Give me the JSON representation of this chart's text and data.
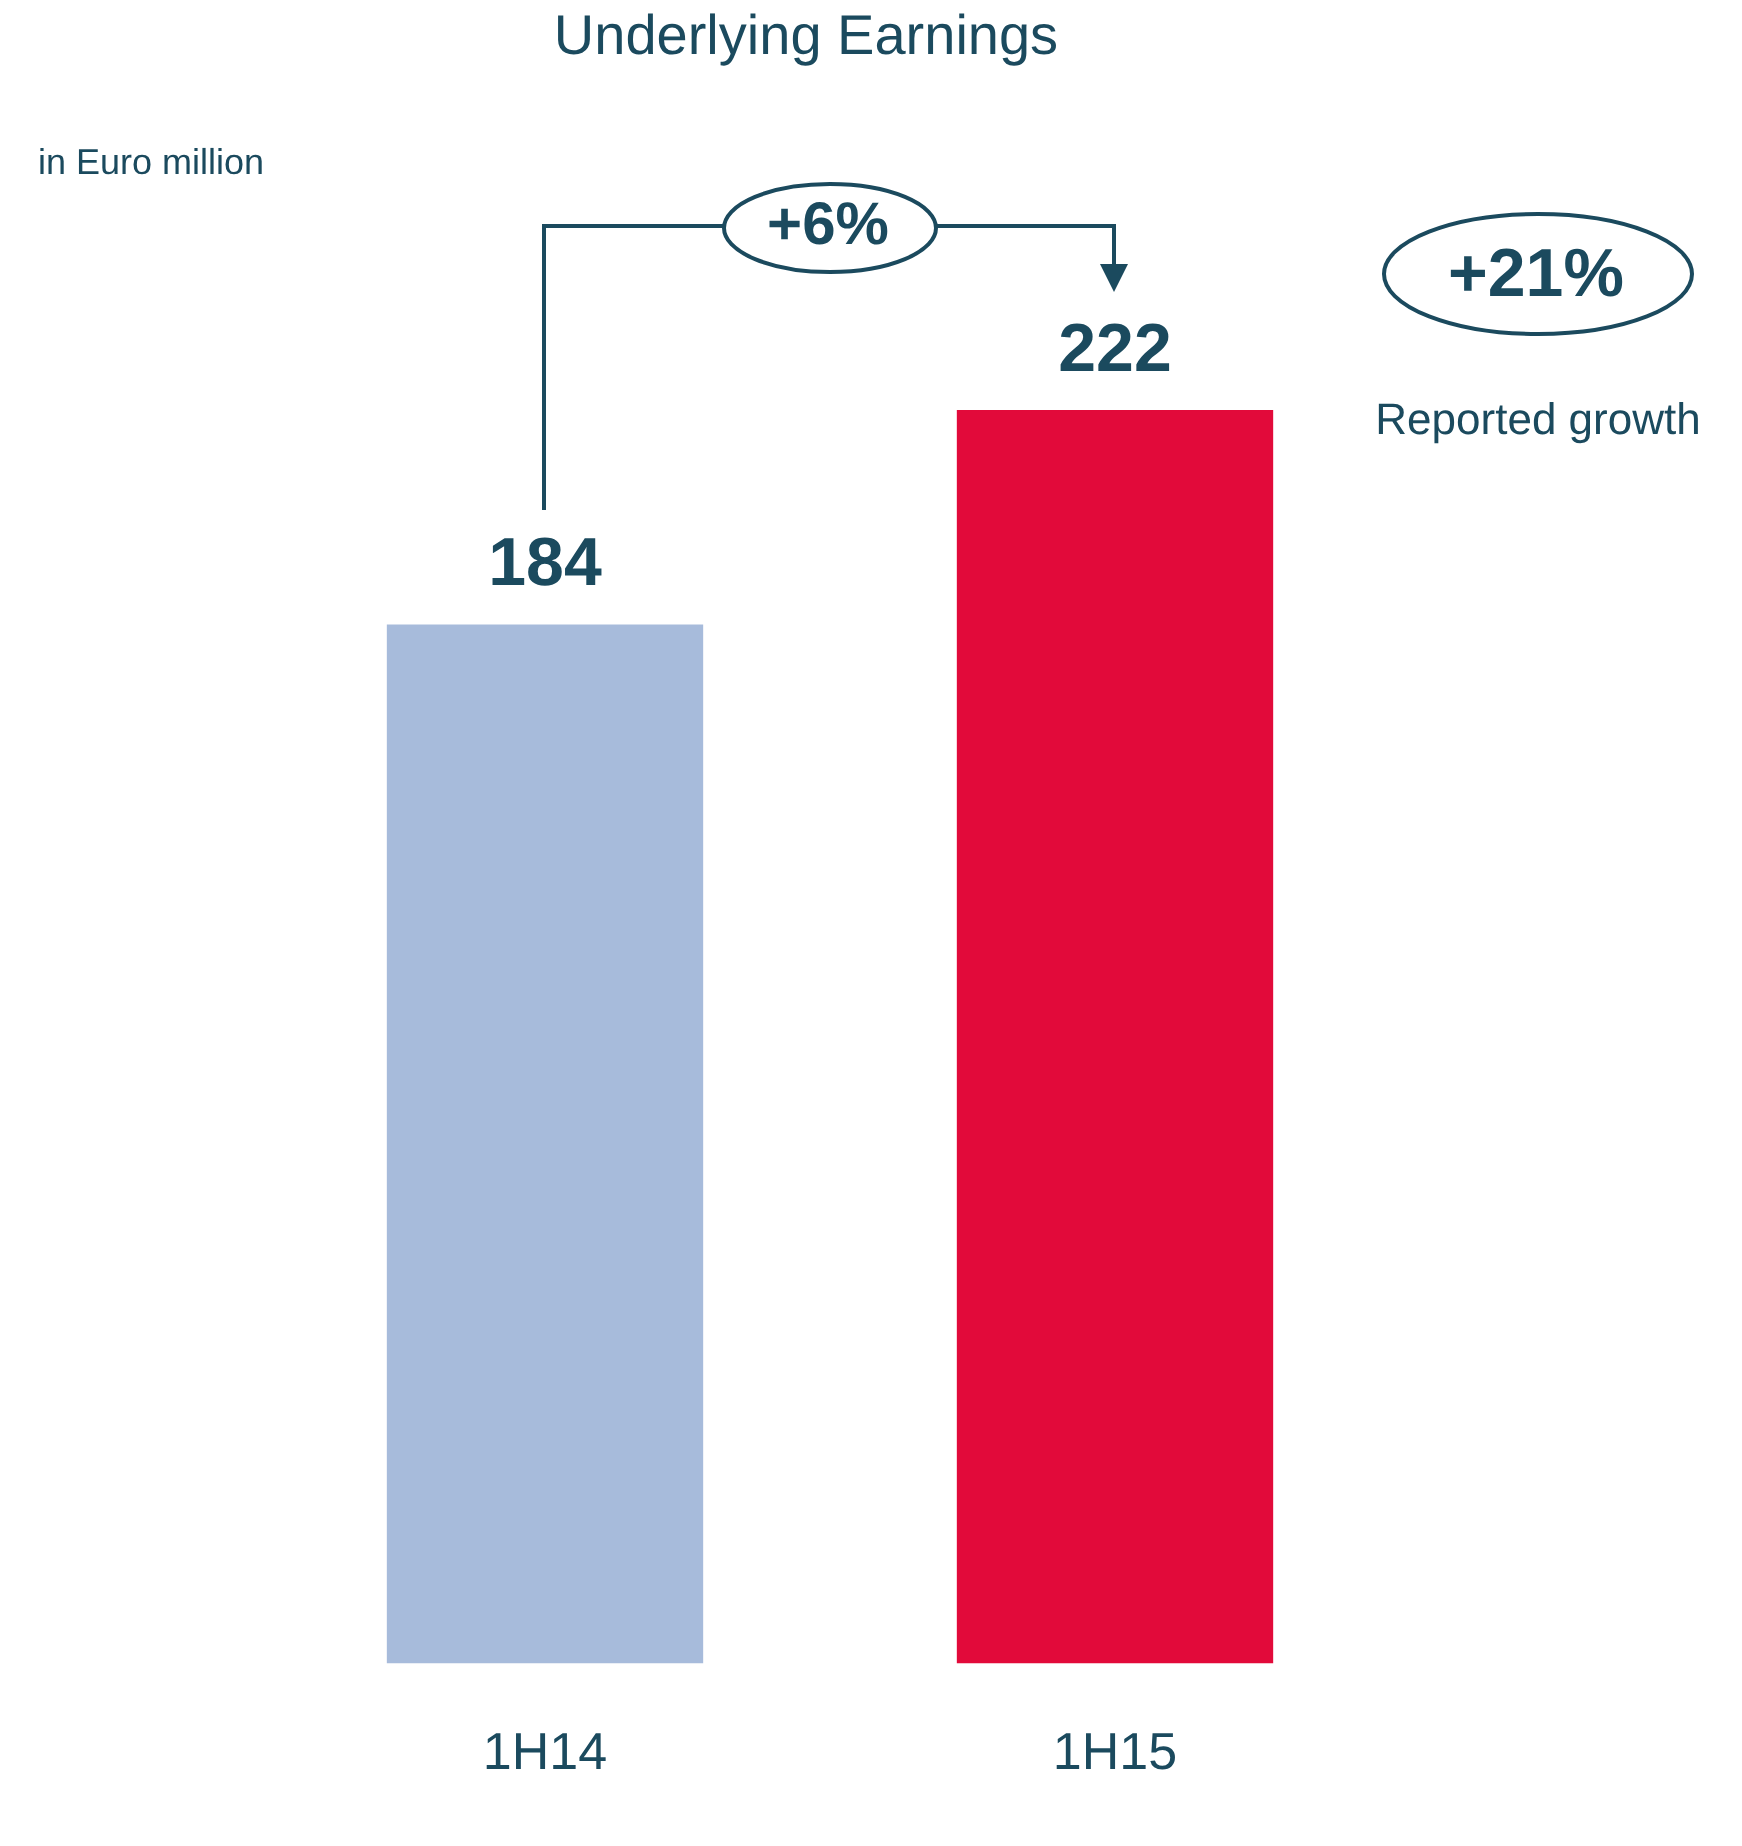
{
  "chart_data": {
    "type": "bar",
    "title": "Underlying Earnings",
    "categories": [
      "1H14",
      "1H15"
    ],
    "values": [
      184,
      222
    ],
    "colors": [
      "#a7bbdb",
      "#e20a3a"
    ],
    "tick_labels": "x",
    "grid": false,
    "legend": false,
    "data_labels": true,
    "annotations": [
      "in Euro million",
      "+6%",
      "+21%",
      "Reported growth"
    ]
  }
}
